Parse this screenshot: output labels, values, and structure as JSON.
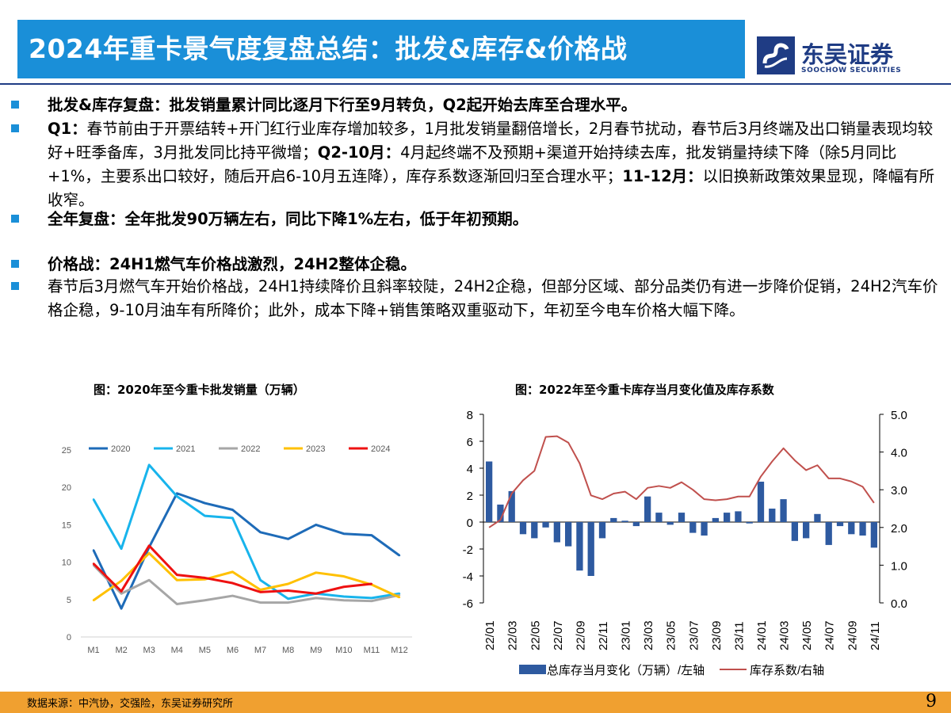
{
  "header": {
    "title": "2024年重卡景气度复盘总结：批发&库存&价格战",
    "logo_cn": "东吴证券",
    "logo_en": "SOOCHOW SECURITIES"
  },
  "bullets": [
    {
      "lead": "批发&库存复盘：批发销量累计同比逐月下行至9月转负，Q2起开始去库至合理水平。",
      "text": ""
    },
    {
      "lead": "Q1：",
      "text": "春节前由于开票结转+开门红行业库存增加较多，1月批发销量翻倍增长，2月春节扰动，春节后3月终端及出口销量表现均较好+旺季备库，3月批发同比持平微增；",
      "lead2": "Q2-10月：",
      "text2": "4月起终端不及预期+渠道开始持续去库，批发销量持续下降（除5月同比+1%，主要系出口较好，随后开启6-10月五连降），库存系数逐渐回归至合理水平；",
      "lead3": "11-12月：",
      "text3": "以旧换新政策效果显现，降幅有所收窄。"
    },
    {
      "lead": "全年复盘：全年批发90万辆左右，同比下降1%左右，低于年初预期。",
      "text": ""
    },
    {
      "lead": "价格战：24H1燃气车价格战激烈，24H2整体企稳。",
      "text": ""
    },
    {
      "lead": "",
      "text": "春节后3月燃气车开始价格战，24H1持续降价且斜率较陡，24H2企稳，但部分区域、部分品类仍有进一步降价促销，24H2汽车价格企稳，9-10月油车有所降价；此外，成本下降+销售策略双重驱动下，年初至今电车价格大幅下降。"
    }
  ],
  "chart_left_title": "图：2020年至今重卡批发销量（万辆）",
  "chart_right_title": "图：2022年至今重卡库存当月变化值及库存系数",
  "chart_data": [
    {
      "type": "line",
      "categories": [
        "M1",
        "M2",
        "M3",
        "M4",
        "M5",
        "M6",
        "M7",
        "M8",
        "M9",
        "M10",
        "M11",
        "M12"
      ],
      "ylim": [
        0,
        25
      ],
      "yticks": [
        "0",
        "5",
        "10",
        "15",
        "20",
        "25"
      ],
      "legend_position": "top",
      "series": [
        {
          "name": "2020",
          "color": "#1e6bb8",
          "values": [
            11.6,
            3.8,
            12.0,
            19.2,
            17.9,
            17.0,
            14.0,
            13.1,
            15.0,
            13.8,
            13.6,
            10.9
          ]
        },
        {
          "name": "2021",
          "color": "#18b4ec",
          "values": [
            18.4,
            11.8,
            23.0,
            18.8,
            16.2,
            15.9,
            7.6,
            5.1,
            5.8,
            5.4,
            5.2,
            5.8
          ]
        },
        {
          "name": "2022",
          "color": "#a6a6a6",
          "values": [
            9.6,
            5.8,
            7.6,
            4.4,
            4.9,
            5.5,
            4.6,
            4.6,
            5.2,
            4.9,
            4.8,
            5.6
          ]
        },
        {
          "name": "2023",
          "color": "#ffc000",
          "values": [
            4.9,
            7.5,
            11.2,
            7.6,
            7.7,
            8.7,
            6.3,
            7.1,
            8.6,
            8.1,
            7.0,
            5.3
          ]
        },
        {
          "name": "2024",
          "color": "#ee1111",
          "values": [
            9.8,
            6.1,
            12.2,
            8.3,
            7.9,
            7.2,
            6.0,
            6.2,
            5.8,
            6.7,
            7.1,
            null
          ]
        }
      ]
    },
    {
      "type": "bar",
      "categories": [
        "22/01",
        "22/02",
        "22/03",
        "22/04",
        "22/05",
        "22/06",
        "22/07",
        "22/08",
        "22/09",
        "22/10",
        "22/11",
        "22/12",
        "23/01",
        "23/02",
        "23/03",
        "23/04",
        "23/05",
        "23/06",
        "23/07",
        "23/08",
        "23/09",
        "23/10",
        "23/11",
        "23/12",
        "24/01",
        "24/02",
        "24/03",
        "24/04",
        "24/05",
        "24/06",
        "24/07",
        "24/08",
        "24/09",
        "24/10",
        "24/11"
      ],
      "xtick_labels": [
        "22/01",
        "22/03",
        "22/05",
        "22/07",
        "22/09",
        "22/11",
        "23/01",
        "23/03",
        "23/05",
        "23/07",
        "23/09",
        "23/11",
        "24/01",
        "24/03",
        "24/05",
        "24/07",
        "24/09",
        "24/11"
      ],
      "ylim": [
        -6,
        8
      ],
      "yticks": [
        "-6",
        "-4",
        "-2",
        "0",
        "2",
        "4",
        "6",
        "8"
      ],
      "y2lim": [
        0,
        5
      ],
      "y2ticks": [
        "0.0",
        "1.0",
        "2.0",
        "3.0",
        "4.0",
        "5.0"
      ],
      "legend_position": "bottom",
      "series": [
        {
          "name": "总库存当月变化（万辆）/左轴",
          "kind": "bar",
          "axis": "left",
          "color": "#2e5aa0",
          "values": [
            4.5,
            1.3,
            2.3,
            -0.9,
            -1.2,
            -0.4,
            -1.5,
            -1.8,
            -3.6,
            -4.0,
            -1.2,
            0.3,
            0.1,
            -0.3,
            1.9,
            0.7,
            -0.2,
            0.7,
            -0.8,
            -1.0,
            0.3,
            0.7,
            0.8,
            -0.1,
            3.0,
            1.0,
            1.7,
            -1.4,
            -1.2,
            0.6,
            -1.7,
            -0.3,
            -0.9,
            -1.0,
            -1.9
          ]
        },
        {
          "name": "库存系数/右轴",
          "kind": "line",
          "axis": "right",
          "color": "#c0504d",
          "values": [
            2.0,
            2.2,
            2.9,
            3.25,
            3.5,
            4.4,
            4.42,
            4.25,
            3.7,
            2.85,
            2.75,
            2.9,
            2.95,
            2.75,
            3.05,
            3.1,
            3.05,
            3.2,
            3.0,
            2.75,
            2.72,
            2.75,
            2.82,
            2.82,
            3.35,
            3.75,
            4.1,
            3.78,
            3.52,
            3.65,
            3.3,
            3.3,
            3.22,
            3.08,
            2.65
          ]
        }
      ]
    }
  ],
  "footer": {
    "source": "数据来源：中汽协，交强险，东吴证券研究所",
    "page": "9"
  }
}
